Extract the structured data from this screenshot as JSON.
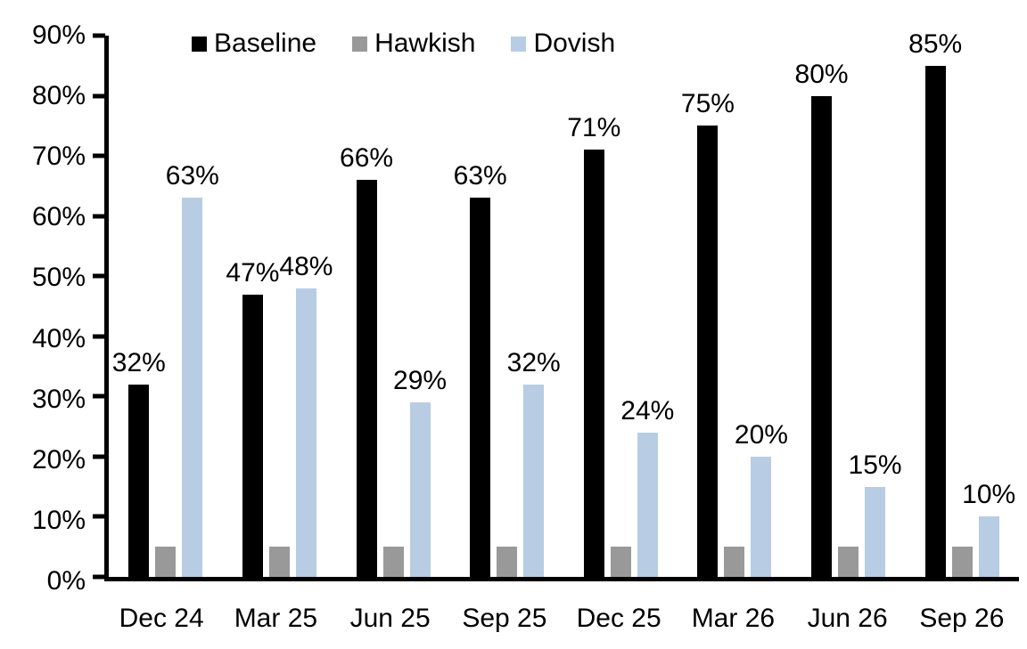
{
  "chart_data": {
    "type": "bar",
    "title": "",
    "xlabel": "",
    "ylabel": "",
    "categories": [
      "Dec 24",
      "Mar 25",
      "Jun 25",
      "Sep 25",
      "Dec 25",
      "Mar 26",
      "Jun 26",
      "Sep 26"
    ],
    "series": [
      {
        "name": "Baseline",
        "color": "#000000",
        "values": [
          32,
          47,
          66,
          63,
          71,
          75,
          80,
          85
        ],
        "data_labels": [
          "32%",
          "47%",
          "66%",
          "63%",
          "71%",
          "75%",
          "80%",
          "85%"
        ]
      },
      {
        "name": "Hawkish",
        "color": "#999999",
        "values": [
          5,
          5,
          5,
          5,
          5,
          5,
          5,
          5
        ],
        "data_labels": [
          "",
          "",
          "",
          "",
          "",
          "",
          "",
          ""
        ]
      },
      {
        "name": "Dovish",
        "color": "#b8cce4",
        "values": [
          63,
          48,
          29,
          32,
          24,
          20,
          15,
          10
        ],
        "data_labels": [
          "63%",
          "48%",
          "29%",
          "32%",
          "24%",
          "20%",
          "15%",
          "10%"
        ]
      }
    ],
    "y_tick_labels": [
      "90%",
      "80%",
      "70%",
      "60%",
      "50%",
      "40%",
      "30%",
      "20%",
      "10%",
      "0%"
    ],
    "ylim": [
      0,
      90
    ],
    "y_step": 10,
    "grid": false,
    "legend_position": "top-inside",
    "axis_color": "#000000",
    "background_color": "#ffffff"
  }
}
